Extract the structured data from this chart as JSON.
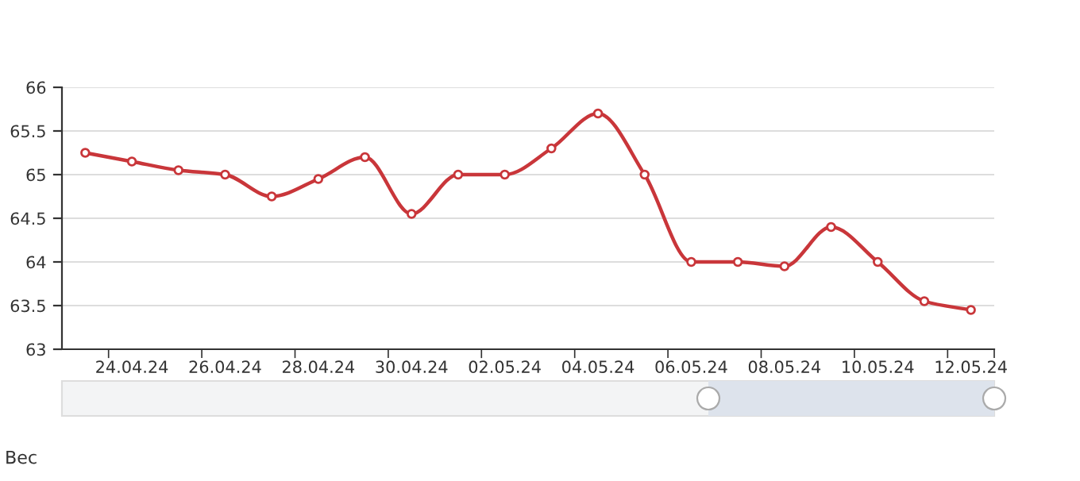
{
  "chart_data": {
    "type": "line",
    "title": "Вес",
    "categories": [
      null,
      "24.04.24",
      null,
      "26.04.24",
      null,
      "28.04.24",
      null,
      "30.04.24",
      null,
      "02.05.24",
      null,
      "04.05.24",
      null,
      "06.05.24",
      null,
      "08.05.24",
      null,
      "10.05.24",
      null,
      "12.05.24"
    ],
    "series": [
      {
        "color": "#c9363a",
        "values": [
          65.25,
          65.15,
          65.05,
          65.0,
          64.75,
          64.95,
          65.2,
          64.55,
          65.0,
          65.0,
          65.3,
          65.7,
          65.0,
          64.0,
          64.0,
          63.95,
          64.4,
          64.0,
          63.55,
          63.45
        ]
      }
    ],
    "ylim": [
      63,
      66
    ],
    "yticks": [
      63,
      63.5,
      64,
      64.5,
      65,
      65.5,
      66
    ],
    "grid": "y",
    "marker": "circle",
    "line_style": "solid",
    "legend": false
  }
}
